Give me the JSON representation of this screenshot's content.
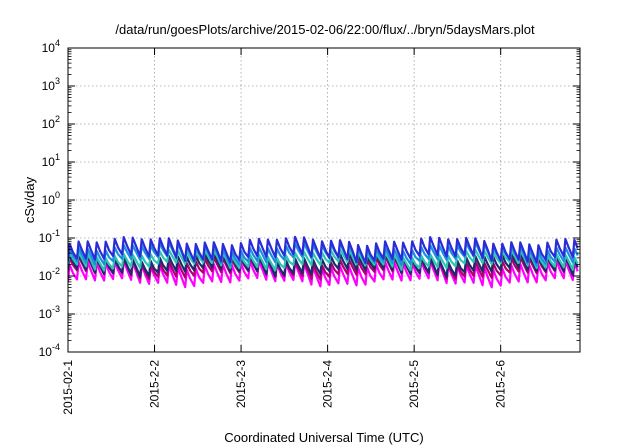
{
  "chart_data": {
    "type": "line",
    "title": "/data/run/goesPlots/archive/2015-02-06/22:00/flux/../bryn/5daysMars.plot",
    "xlabel": "Coordinated Universal Time (UTC)",
    "ylabel": "cSv/day",
    "yscale": "log",
    "ylim": [
      0.0001,
      10000
    ],
    "xlim": [
      "2015-02-01",
      "2015-02-06 22:00"
    ],
    "grid": true,
    "legend": "none",
    "x_tick_labels": [
      "2015-02-1",
      "2015-2-2",
      "2015-2-3",
      "2015-2-4",
      "2015-2-5",
      "2015-2-6"
    ],
    "y_tick_labels": [
      {
        "base": "10",
        "exp": "-4"
      },
      {
        "base": "10",
        "exp": "-3"
      },
      {
        "base": "10",
        "exp": "-2"
      },
      {
        "base": "10",
        "exp": "-1"
      },
      {
        "base": "10",
        "exp": "0"
      },
      {
        "base": "10",
        "exp": "1"
      },
      {
        "base": "10",
        "exp": "2"
      },
      {
        "base": "10",
        "exp": "3"
      },
      {
        "base": "10",
        "exp": "4"
      }
    ],
    "sample_interval_hours": 2.5,
    "series": [
      {
        "color": "#ff00ff",
        "peak": 0.02,
        "trough": 0.007
      },
      {
        "color": "#b0006e",
        "peak": 0.026,
        "trough": 0.011
      },
      {
        "color": "#1e2a6e",
        "peak": 0.032,
        "trough": 0.013
      },
      {
        "color": "#2ec4b6",
        "peak": 0.04,
        "trough": 0.019
      },
      {
        "color": "#1a8fe0",
        "peak": 0.06,
        "trough": 0.026
      },
      {
        "color": "#2b2bd8",
        "peak": 0.085,
        "trough": 0.03
      }
    ]
  }
}
